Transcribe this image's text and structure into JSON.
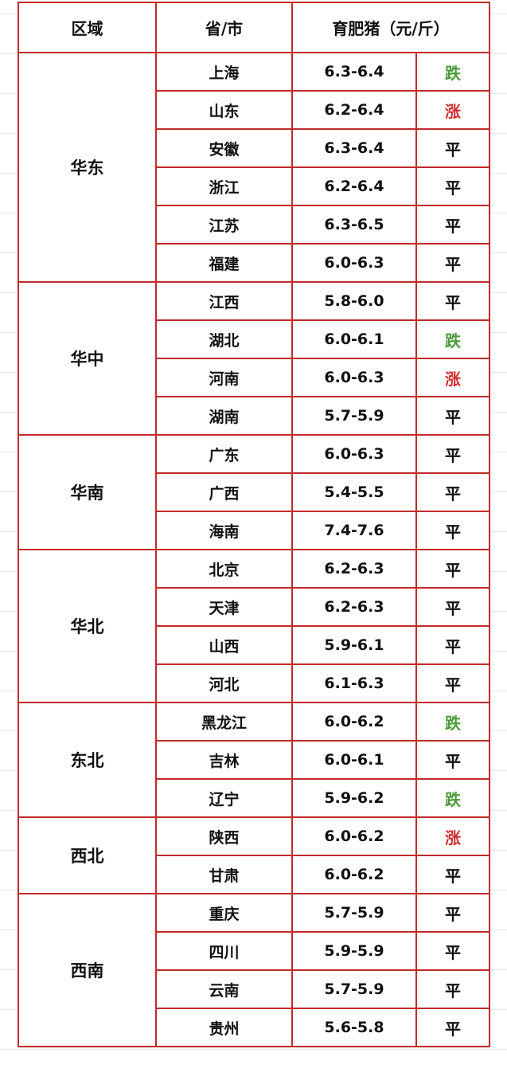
{
  "header": {
    "region": "区域",
    "province": "省/市",
    "price": "育肥猪（元/斤）"
  },
  "colors": {
    "border": "#c22a2a",
    "down": "#4e9a3c",
    "up": "#d03030",
    "flat": "#111111"
  },
  "regions": [
    {
      "name": "华东",
      "rows": [
        {
          "province": "上海",
          "price": "6.3-6.4",
          "trend": "跌"
        },
        {
          "province": "山东",
          "price": "6.2-6.4",
          "trend": "涨"
        },
        {
          "province": "安徽",
          "price": "6.3-6.4",
          "trend": "平"
        },
        {
          "province": "浙江",
          "price": "6.2-6.4",
          "trend": "平"
        },
        {
          "province": "江苏",
          "price": "6.3-6.5",
          "trend": "平"
        },
        {
          "province": "福建",
          "price": "6.0-6.3",
          "trend": "平"
        }
      ]
    },
    {
      "name": "华中",
      "rows": [
        {
          "province": "江西",
          "price": "5.8-6.0",
          "trend": "平"
        },
        {
          "province": "湖北",
          "price": "6.0-6.1",
          "trend": "跌"
        },
        {
          "province": "河南",
          "price": "6.0-6.3",
          "trend": "涨"
        },
        {
          "province": "湖南",
          "price": "5.7-5.9",
          "trend": "平"
        }
      ]
    },
    {
      "name": "华南",
      "rows": [
        {
          "province": "广东",
          "price": "6.0-6.3",
          "trend": "平"
        },
        {
          "province": "广西",
          "price": "5.4-5.5",
          "trend": "平"
        },
        {
          "province": "海南",
          "price": "7.4-7.6",
          "trend": "平"
        }
      ]
    },
    {
      "name": "华北",
      "rows": [
        {
          "province": "北京",
          "price": "6.2-6.3",
          "trend": "平"
        },
        {
          "province": "天津",
          "price": "6.2-6.3",
          "trend": "平"
        },
        {
          "province": "山西",
          "price": "5.9-6.1",
          "trend": "平"
        },
        {
          "province": "河北",
          "price": "6.1-6.3",
          "trend": "平"
        }
      ]
    },
    {
      "name": "东北",
      "rows": [
        {
          "province": "黑龙江",
          "price": "6.0-6.2",
          "trend": "跌"
        },
        {
          "province": "吉林",
          "price": "6.0-6.1",
          "trend": "平"
        },
        {
          "province": "辽宁",
          "price": "5.9-6.2",
          "trend": "跌"
        }
      ]
    },
    {
      "name": "西北",
      "rows": [
        {
          "province": "陕西",
          "price": "6.0-6.2",
          "trend": "涨"
        },
        {
          "province": "甘肃",
          "price": "6.0-6.2",
          "trend": "平"
        }
      ]
    },
    {
      "name": "西南",
      "rows": [
        {
          "province": "重庆",
          "price": "5.7-5.9",
          "trend": "平"
        },
        {
          "province": "四川",
          "price": "5.9-5.9",
          "trend": "平"
        },
        {
          "province": "云南",
          "price": "5.7-5.9",
          "trend": "平"
        },
        {
          "province": "贵州",
          "price": "5.6-5.8",
          "trend": "平"
        }
      ]
    }
  ]
}
